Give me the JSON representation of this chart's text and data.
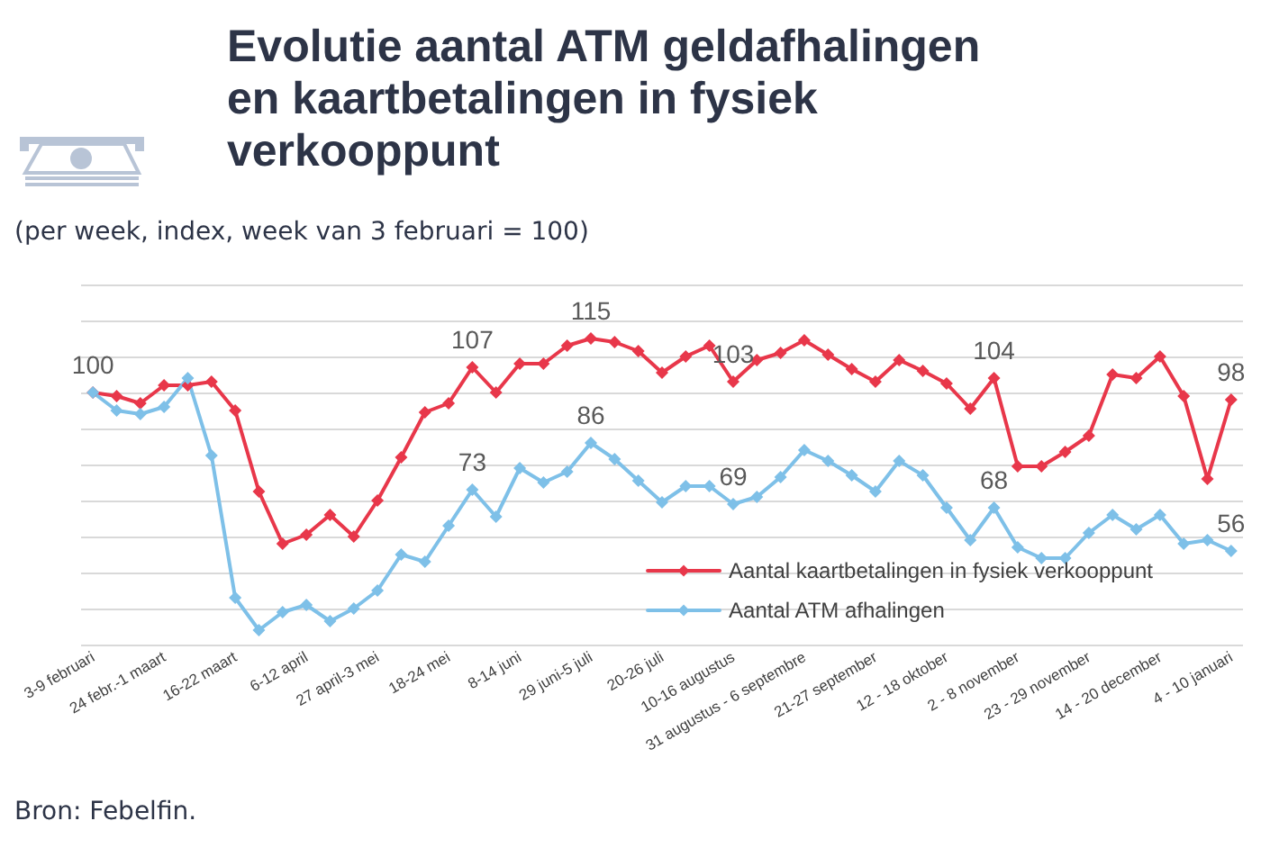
{
  "chart_data": {
    "type": "line",
    "title": "Evolutie aantal ATM geldafhalingen en kaartbetalingen in fysiek verkooppunt",
    "subtitle": "(per week, index, week van 3 februari = 100)",
    "annotations": [
      "Bron: Febelfin."
    ],
    "categories": [
      "3-9 februari",
      null,
      null,
      "24 febr.-1 maart",
      null,
      null,
      "16-22 maart",
      null,
      null,
      "6-12 april",
      null,
      null,
      "27 april-3 mei",
      null,
      null,
      "18-24 mei",
      null,
      null,
      "8-14 juni",
      null,
      null,
      "29 juni-5 juli",
      null,
      null,
      "20-26 juli",
      null,
      null,
      "10-16 augustus",
      null,
      null,
      "31 augustus - 6 septembre",
      null,
      null,
      "21-27 september",
      null,
      null,
      "12 - 18 oktober",
      null,
      null,
      "2 - 8 november",
      null,
      null,
      "23 - 29 november",
      null,
      null,
      "14 - 20 december",
      null,
      null,
      "4 - 10 januari"
    ],
    "series": [
      {
        "name": "Aantal kaartbetalingen in fysiek verkooppunt",
        "color": "#e8374a",
        "values": [
          100,
          99,
          97,
          102,
          102,
          103,
          95,
          72.5,
          58,
          60.5,
          66,
          60,
          70,
          82,
          94.5,
          97,
          107,
          100,
          108,
          108,
          113,
          115,
          114,
          111.5,
          105.5,
          110,
          113,
          103,
          109,
          111,
          114.5,
          110.5,
          106.5,
          103,
          109,
          106,
          102.5,
          95.5,
          104,
          79.5,
          79.5,
          83.5,
          88,
          105,
          104,
          110,
          99,
          76,
          98
        ],
        "value_labels": [
          "100",
          null,
          null,
          null,
          null,
          null,
          null,
          null,
          null,
          null,
          null,
          null,
          null,
          null,
          null,
          null,
          "107",
          null,
          null,
          null,
          null,
          "115",
          null,
          null,
          null,
          null,
          null,
          "103",
          null,
          null,
          null,
          null,
          null,
          null,
          null,
          null,
          null,
          null,
          "104",
          null,
          null,
          null,
          null,
          null,
          null,
          null,
          null,
          null,
          "98"
        ]
      },
      {
        "name": "Aantal ATM afhalingen",
        "color": "#7ec0e8",
        "values": [
          100,
          95,
          94,
          96,
          104,
          82.5,
          43,
          34,
          39,
          41,
          36.5,
          40,
          45,
          55,
          53,
          63,
          73,
          65.5,
          79,
          75,
          78,
          86,
          81.5,
          75.5,
          69.5,
          74,
          74,
          69,
          71,
          76.5,
          84,
          81,
          77,
          72.5,
          81,
          77,
          68,
          59,
          68,
          57,
          54,
          54,
          61,
          66,
          62,
          66,
          58,
          59,
          56
        ],
        "value_labels": [
          null,
          null,
          null,
          null,
          null,
          null,
          null,
          null,
          null,
          null,
          null,
          null,
          null,
          null,
          null,
          null,
          "73",
          null,
          null,
          null,
          null,
          "86",
          null,
          null,
          null,
          null,
          null,
          "69",
          null,
          null,
          null,
          null,
          null,
          null,
          null,
          null,
          null,
          null,
          "68",
          null,
          null,
          null,
          null,
          null,
          null,
          null,
          null,
          null,
          "56"
        ]
      }
    ],
    "ylim": [
      30,
      130
    ],
    "yticks": [
      {
        "value": 30,
        "label": null
      },
      {
        "value": 40,
        "label": null
      },
      {
        "value": 50,
        "label": null
      },
      {
        "value": 60,
        "label": null
      },
      {
        "value": 70,
        "label": null
      },
      {
        "value": 80,
        "label": null
      },
      {
        "value": 90,
        "label": null
      },
      {
        "value": 100,
        "label": null
      },
      {
        "value": 110,
        "label": null
      },
      {
        "value": 120,
        "label": null
      },
      {
        "value": 130,
        "label": null
      }
    ],
    "tick_labels": "x",
    "grid": "y",
    "legend": "bottom right",
    "marker": "diamond",
    "line_style": "solid"
  }
}
